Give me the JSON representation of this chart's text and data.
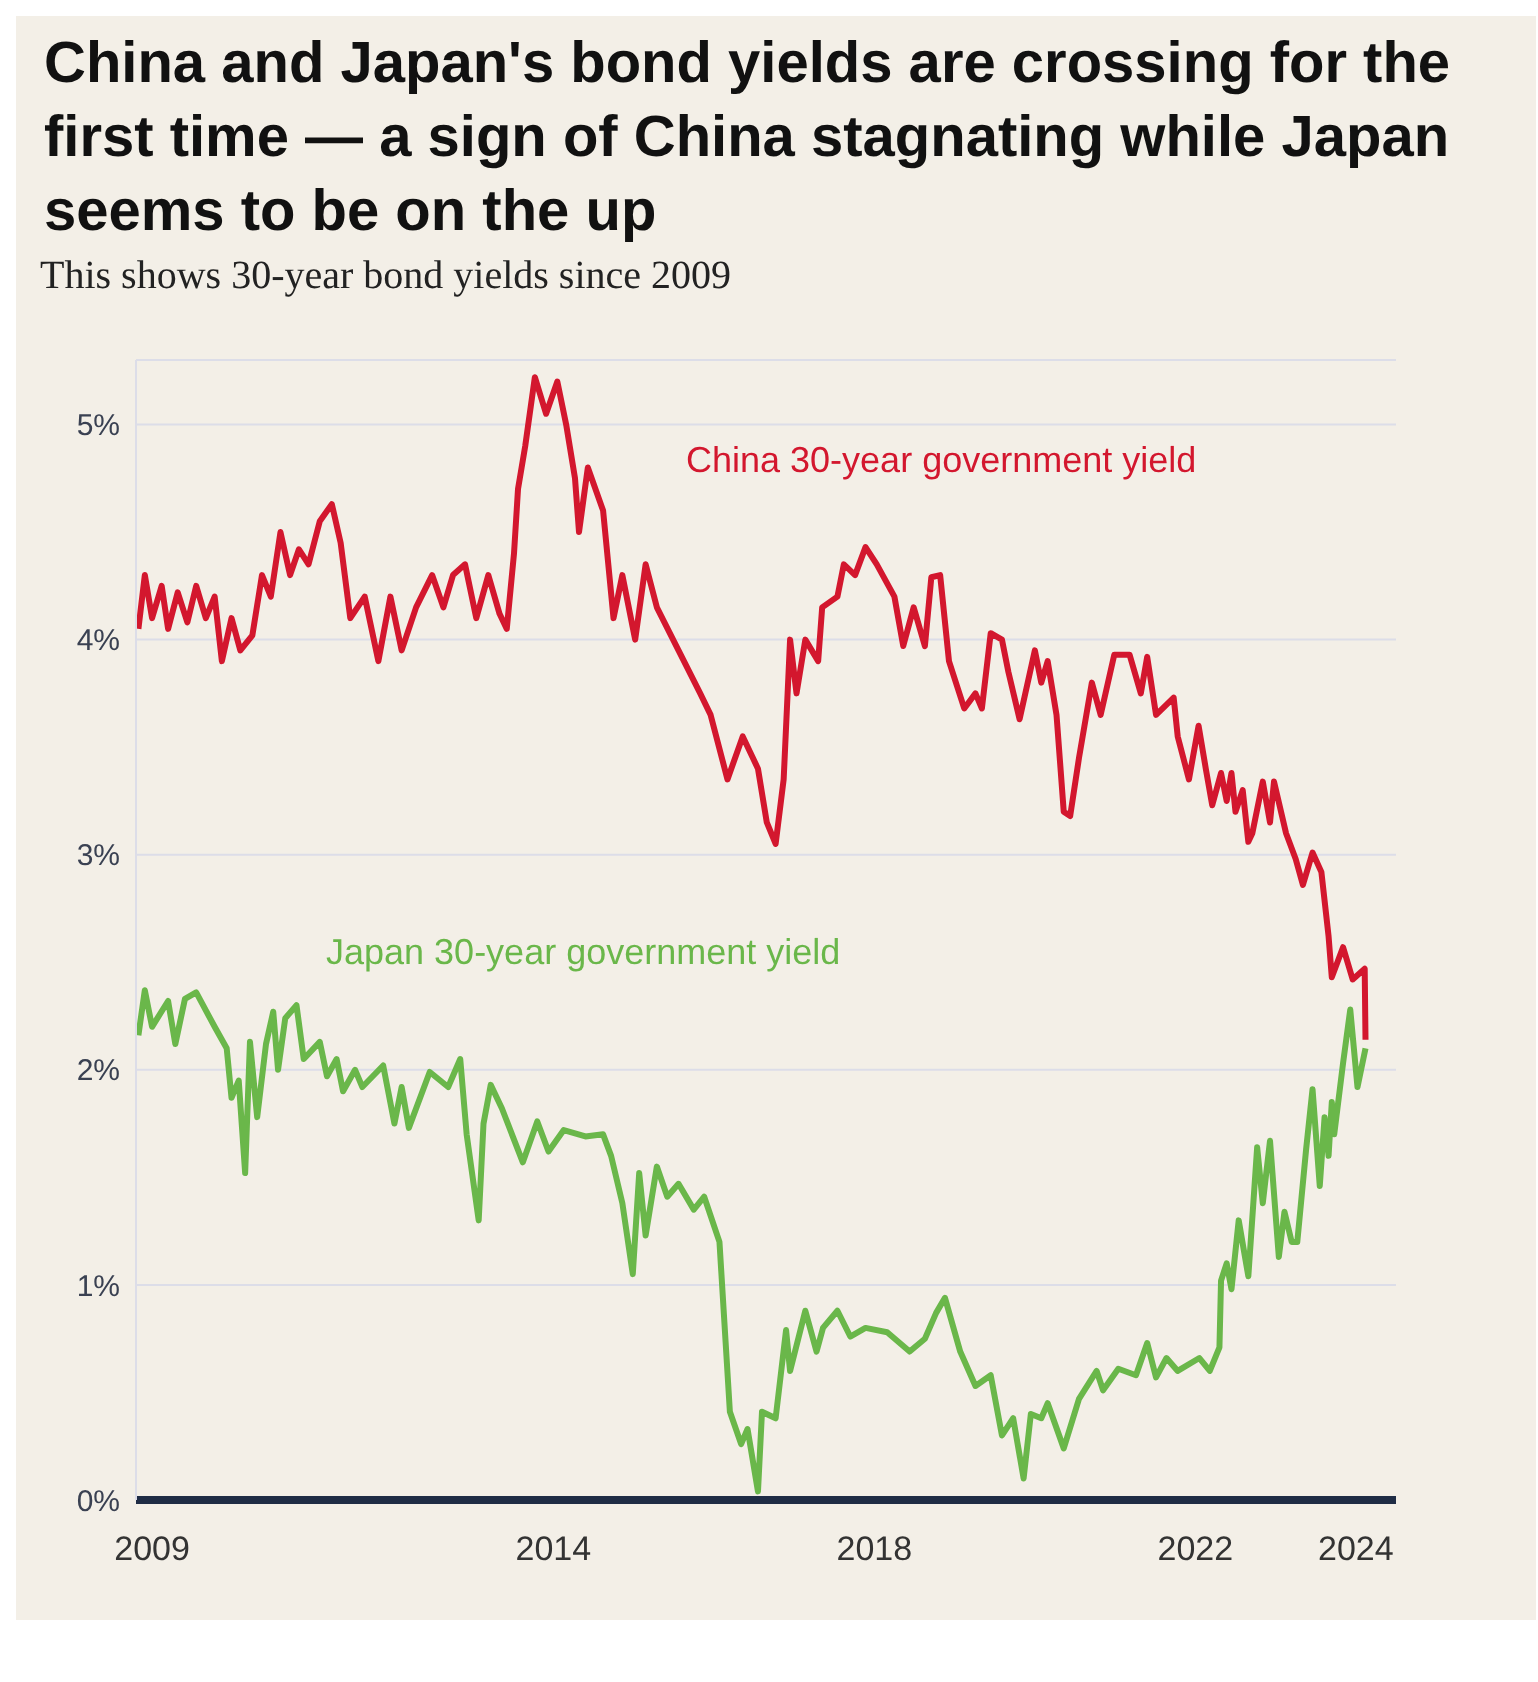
{
  "chart_data": {
    "type": "line",
    "title": "China and Japan's bond yields are crossing for the first time — a sign of China stagnating while Japan seems to be on the up",
    "subtitle": "This shows 30-year bond yields since 2009",
    "series": [
      {
        "name": "China 30-year government yield",
        "color": "#d3172e",
        "x": [
          2008.83,
          2008.91,
          2009.0,
          2009.12,
          2009.2,
          2009.32,
          2009.44,
          2009.55,
          2009.67,
          2009.78,
          2009.87,
          2009.99,
          2010.1,
          2010.25,
          2010.37,
          2010.48,
          2010.6,
          2010.72,
          2010.83,
          2010.95,
          2011.09,
          2011.24,
          2011.35,
          2011.47,
          2011.65,
          2011.82,
          2011.97,
          2012.11,
          2012.29,
          2012.49,
          2012.63,
          2012.75,
          2012.9,
          2013.04,
          2013.19,
          2013.33,
          2013.42,
          2013.51,
          2013.56,
          2013.65,
          2013.77,
          2013.91,
          2014.05,
          2014.16,
          2014.27,
          2014.32,
          2014.43,
          2014.62,
          2014.75,
          2014.86,
          2015.02,
          2015.15,
          2015.29,
          2015.56,
          2015.83,
          2015.96,
          2016.17,
          2016.36,
          2016.55,
          2016.66,
          2016.77,
          2016.87,
          2016.95,
          2017.03,
          2017.14,
          2017.3,
          2017.35,
          2017.54,
          2017.62,
          2017.76,
          2017.89,
          2018.03,
          2018.25,
          2018.36,
          2018.49,
          2018.63,
          2018.71,
          2018.82,
          2018.93,
          2019.12,
          2019.26,
          2019.34,
          2019.45,
          2019.59,
          2019.67,
          2019.81,
          2020.0,
          2020.08,
          2020.16,
          2020.27,
          2020.36,
          2020.44,
          2020.55,
          2020.71,
          2020.82,
          2020.99,
          2021.18,
          2021.32,
          2021.4,
          2021.51,
          2021.73,
          2021.78,
          2021.92,
          2022.04,
          2022.13,
          2022.21,
          2022.32,
          2022.39,
          2022.45,
          2022.5,
          2022.59,
          2022.66,
          2022.71,
          2022.84,
          2022.93,
          2022.98,
          2023.13,
          2023.25,
          2023.34,
          2023.46,
          2023.57,
          2023.66,
          2023.7,
          2023.84,
          2023.96,
          2024.11,
          2024.12
        ],
        "values": [
          4.05,
          4.3,
          4.1,
          4.25,
          4.05,
          4.22,
          4.08,
          4.25,
          4.1,
          4.2,
          3.9,
          4.1,
          3.95,
          4.02,
          4.3,
          4.2,
          4.5,
          4.3,
          4.42,
          4.35,
          4.55,
          4.63,
          4.45,
          4.1,
          4.2,
          3.9,
          4.2,
          3.95,
          4.15,
          4.3,
          4.15,
          4.3,
          4.35,
          4.1,
          4.3,
          4.12,
          4.05,
          4.4,
          4.7,
          4.9,
          5.22,
          5.05,
          5.2,
          5.0,
          4.75,
          4.5,
          4.8,
          4.6,
          4.1,
          4.3,
          4.0,
          4.35,
          4.15,
          3.95,
          3.75,
          3.65,
          3.35,
          3.55,
          3.4,
          3.15,
          3.05,
          3.35,
          4.0,
          3.75,
          4.0,
          3.9,
          4.15,
          4.2,
          4.35,
          4.3,
          4.43,
          4.35,
          4.2,
          3.97,
          4.15,
          3.97,
          4.29,
          4.3,
          3.9,
          3.68,
          3.75,
          3.68,
          4.03,
          4.0,
          3.85,
          3.63,
          3.95,
          3.8,
          3.9,
          3.65,
          3.2,
          3.18,
          3.45,
          3.8,
          3.65,
          3.93,
          3.93,
          3.75,
          3.92,
          3.65,
          3.73,
          3.55,
          3.35,
          3.6,
          3.4,
          3.23,
          3.38,
          3.25,
          3.38,
          3.2,
          3.3,
          3.06,
          3.1,
          3.34,
          3.15,
          3.34,
          3.1,
          2.98,
          2.86,
          3.01,
          2.92,
          2.62,
          2.43,
          2.57,
          2.42,
          2.47,
          2.14
        ]
      },
      {
        "name": "Japan 30-year government yield",
        "color": "#6ab74a",
        "x": [
          2008.83,
          2008.91,
          2009.0,
          2009.2,
          2009.29,
          2009.41,
          2009.55,
          2009.78,
          2009.93,
          2009.99,
          2010.08,
          2010.16,
          2010.22,
          2010.31,
          2010.42,
          2010.51,
          2010.57,
          2010.66,
          2010.8,
          2010.89,
          2011.09,
          2011.18,
          2011.3,
          2011.38,
          2011.53,
          2011.62,
          2011.88,
          2012.02,
          2012.11,
          2012.2,
          2012.46,
          2012.69,
          2012.84,
          2012.92,
          2013.07,
          2013.13,
          2013.22,
          2013.36,
          2013.62,
          2013.8,
          2013.94,
          2014.13,
          2014.4,
          2014.62,
          2014.72,
          2014.86,
          2014.99,
          2015.07,
          2015.15,
          2015.29,
          2015.42,
          2015.56,
          2015.75,
          2015.88,
          2016.07,
          2016.2,
          2016.34,
          2016.42,
          2016.55,
          2016.6,
          2016.77,
          2016.9,
          2016.95,
          2017.14,
          2017.28,
          2017.36,
          2017.54,
          2017.7,
          2017.89,
          2018.16,
          2018.44,
          2018.63,
          2018.77,
          2018.88,
          2019.07,
          2019.26,
          2019.45,
          2019.59,
          2019.73,
          2019.86,
          2019.95,
          2020.08,
          2020.16,
          2020.36,
          2020.55,
          2020.77,
          2020.85,
          2021.04,
          2021.26,
          2021.4,
          2021.51,
          2021.64,
          2021.78,
          2022.05,
          2022.18,
          2022.3,
          2022.32,
          2022.39,
          2022.45,
          2022.54,
          2022.66,
          2022.77,
          2022.84,
          2022.93,
          2023.04,
          2023.11,
          2023.2,
          2023.27,
          2023.38,
          2023.46,
          2023.55,
          2023.61,
          2023.66,
          2023.7,
          2023.73,
          2023.84,
          2023.93,
          2024.02,
          2024.12
        ],
        "values": [
          2.16,
          2.37,
          2.2,
          2.32,
          2.12,
          2.33,
          2.36,
          2.2,
          2.1,
          1.87,
          1.95,
          1.52,
          2.13,
          1.78,
          2.12,
          2.27,
          2.0,
          2.24,
          2.3,
          2.05,
          2.13,
          1.97,
          2.05,
          1.9,
          2.0,
          1.92,
          2.02,
          1.75,
          1.92,
          1.73,
          1.99,
          1.92,
          2.05,
          1.7,
          1.3,
          1.75,
          1.93,
          1.82,
          1.57,
          1.76,
          1.62,
          1.72,
          1.69,
          1.7,
          1.6,
          1.38,
          1.05,
          1.52,
          1.23,
          1.55,
          1.41,
          1.47,
          1.35,
          1.41,
          1.2,
          0.41,
          0.26,
          0.33,
          0.04,
          0.41,
          0.38,
          0.79,
          0.6,
          0.88,
          0.69,
          0.8,
          0.88,
          0.76,
          0.8,
          0.78,
          0.69,
          0.75,
          0.87,
          0.94,
          0.69,
          0.53,
          0.58,
          0.3,
          0.38,
          0.1,
          0.4,
          0.38,
          0.45,
          0.24,
          0.47,
          0.6,
          0.51,
          0.61,
          0.58,
          0.73,
          0.57,
          0.66,
          0.6,
          0.66,
          0.6,
          0.71,
          1.02,
          1.1,
          0.98,
          1.3,
          1.04,
          1.64,
          1.38,
          1.67,
          1.13,
          1.34,
          1.2,
          1.2,
          1.63,
          1.91,
          1.46,
          1.78,
          1.6,
          1.85,
          1.7,
          2.03,
          2.28,
          1.92,
          2.1
        ]
      }
    ],
    "xlim": [
      2008.8,
      2024.5
    ],
    "xticks": [
      2009,
      2014,
      2018,
      2022,
      2024
    ],
    "ylim": [
      0,
      5.3
    ],
    "yticks": [
      {
        "value": 0,
        "label": "0%"
      },
      {
        "value": 1,
        "label": "1%"
      },
      {
        "value": 2,
        "label": "2%"
      },
      {
        "value": 3,
        "label": "3%"
      },
      {
        "value": 4,
        "label": "4%"
      },
      {
        "value": 5,
        "label": "5%"
      }
    ],
    "grid": "y",
    "legend": false,
    "marker": "none",
    "line_style": "solid"
  }
}
